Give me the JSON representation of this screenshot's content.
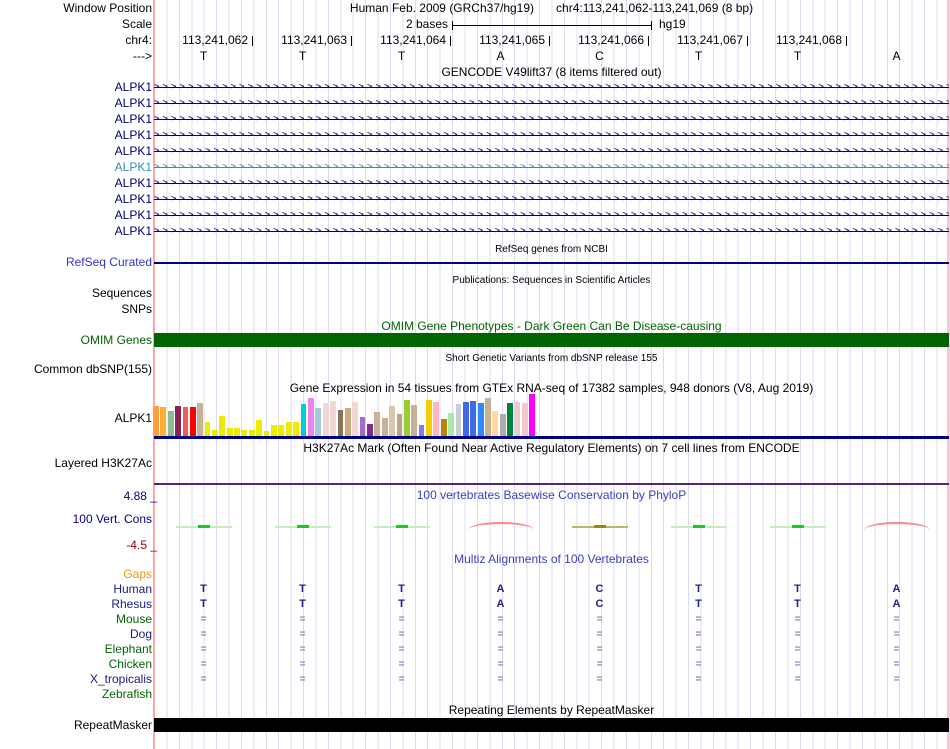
{
  "header": {
    "window_position_label": "Window Position",
    "assembly": "Human Feb. 2009 (GRCh37/hg19)",
    "position": "chr4:113,241,062-113,241,069 (8 bp)",
    "scale_label": "Scale",
    "scale_text": "2 bases",
    "scale_right_text": "hg19",
    "chrom_label": "chr4:",
    "strand_label": "--->",
    "coordinates": [
      "113,241,062",
      "113,241,063",
      "113,241,064",
      "113,241,065",
      "113,241,066",
      "113,241,067",
      "113,241,068"
    ],
    "bases": [
      "T",
      "T",
      "T",
      "A",
      "C",
      "T",
      "T",
      "A"
    ]
  },
  "gencode": {
    "title": "GENCODE V49lift37 (8 items filtered out)",
    "rows": [
      {
        "label": "ALPK1",
        "color": "#000080"
      },
      {
        "label": "ALPK1",
        "color": "#000080"
      },
      {
        "label": "ALPK1",
        "color": "#000080"
      },
      {
        "label": "ALPK1",
        "color": "#000080"
      },
      {
        "label": "ALPK1",
        "color": "#000080"
      },
      {
        "label": "ALPK1",
        "color": "#2F8FB8"
      },
      {
        "label": "ALPK1",
        "color": "#000080"
      },
      {
        "label": "ALPK1",
        "color": "#000080"
      },
      {
        "label": "ALPK1",
        "color": "#000080"
      },
      {
        "label": "ALPK1",
        "color": "#000080"
      }
    ]
  },
  "refseq": {
    "title": "RefSeq genes from NCBI",
    "label": "RefSeq Curated",
    "label_color": "#3535C0",
    "line_color": "#000080"
  },
  "publications": {
    "title": "Publications: Sequences in Scientific Articles",
    "row1": "Sequences",
    "row2": "SNPs"
  },
  "omim": {
    "title": "OMIM Gene Phenotypes - Dark Green Can Be Disease-causing",
    "label": "OMIM Genes",
    "color": "#006400"
  },
  "dbsnp": {
    "title": "Short Genetic Variants from dbSNP release 155",
    "label": "Common dbSNP(155)"
  },
  "gtex": {
    "title": "Gene Expression in 54 tissues from GTEx RNA-seq of 17382 samples, 948 donors (V8, Aug 2019)",
    "label": "ALPK1",
    "baseline_color": "#000080",
    "bars": [
      {
        "color": "#FFA040",
        "h": 30
      },
      {
        "color": "#FFB030",
        "h": 29
      },
      {
        "color": "#8FBC8F",
        "h": 25
      },
      {
        "color": "#8B2257",
        "h": 30
      },
      {
        "color": "#E9605A",
        "h": 29
      },
      {
        "color": "#FF0000",
        "h": 29
      },
      {
        "color": "#C9B195",
        "h": 33
      },
      {
        "color": "#ECEC00",
        "h": 14
      },
      {
        "color": "#ECEC00",
        "h": 6
      },
      {
        "color": "#ECEC00",
        "h": 20
      },
      {
        "color": "#ECEC00",
        "h": 8
      },
      {
        "color": "#ECEC00",
        "h": 8
      },
      {
        "color": "#ECEC00",
        "h": 6
      },
      {
        "color": "#ECEC00",
        "h": 6
      },
      {
        "color": "#ECEC00",
        "h": 16
      },
      {
        "color": "#ECEC00",
        "h": 5
      },
      {
        "color": "#ECEC00",
        "h": 11
      },
      {
        "color": "#ECEC00",
        "h": 11
      },
      {
        "color": "#ECEC00",
        "h": 14
      },
      {
        "color": "#ECEC00",
        "h": 14
      },
      {
        "color": "#00CED1",
        "h": 32
      },
      {
        "color": "#EE82EE",
        "h": 38
      },
      {
        "color": "#A6C8D8",
        "h": 28
      },
      {
        "color": "#EFD7D7",
        "h": 33
      },
      {
        "color": "#EFD7D7",
        "h": 35
      },
      {
        "color": "#8B7355",
        "h": 26
      },
      {
        "color": "#CDAA7D",
        "h": 28
      },
      {
        "color": "#EFD7D7",
        "h": 34
      },
      {
        "color": "#A06CC8",
        "h": 19
      },
      {
        "color": "#7A2E8E",
        "h": 12
      },
      {
        "color": "#C9B195",
        "h": 24
      },
      {
        "color": "#C9B195",
        "h": 18
      },
      {
        "color": "#D9C6AD",
        "h": 30
      },
      {
        "color": "#BFA183",
        "h": 22
      },
      {
        "color": "#9ACD32",
        "h": 36
      },
      {
        "color": "#C9B195",
        "h": 31
      },
      {
        "color": "#8878F0",
        "h": 11
      },
      {
        "color": "#F2CE00",
        "h": 36
      },
      {
        "color": "#FFB6C1",
        "h": 34
      },
      {
        "color": "#B8860B",
        "h": 17
      },
      {
        "color": "#A8E8A8",
        "h": 23
      },
      {
        "color": "#C9CDD6",
        "h": 32
      },
      {
        "color": "#4169E1",
        "h": 34
      },
      {
        "color": "#4169E1",
        "h": 35
      },
      {
        "color": "#2E8BFF",
        "h": 33
      },
      {
        "color": "#C9B195",
        "h": 38
      },
      {
        "color": "#FFD9A0",
        "h": 25
      },
      {
        "color": "#ADADAD",
        "h": 22
      },
      {
        "color": "#00843C",
        "h": 33
      },
      {
        "color": "#EFC9C9",
        "h": 34
      },
      {
        "color": "#EFC9C9",
        "h": 33
      },
      {
        "color": "#FF00FF",
        "h": 42
      }
    ]
  },
  "h3k27ac": {
    "title": "H3K27Ac Mark (Often Found Near Active Regulatory Elements) on 7 cell lines from ENCODE",
    "label": "Layered H3K27Ac",
    "line_color": "#552288"
  },
  "conservation": {
    "title": "100 vertebrates Basewise Conservation by PhyloP",
    "title_color": "#3C3CC8",
    "label": "100 Vert. Cons",
    "max_label": "4.88 _",
    "min_label": "-4.5 _",
    "max_color": "#00008B",
    "min_color": "#8B0000",
    "marks": [
      "green",
      "green",
      "green",
      "red",
      "olive",
      "green",
      "green",
      "red"
    ]
  },
  "multiz": {
    "title": "Multiz Alignments of 100 Vertebrates",
    "title_color": "#3C3CC8",
    "letter_color": "#21218C",
    "eq_color": "#8181BD",
    "rows": [
      {
        "label": "Gaps",
        "color": "#E8940A",
        "cells": [
          "",
          "",
          "",
          "",
          "",
          "",
          "",
          ""
        ]
      },
      {
        "label": "Human",
        "color": "#1A1A7E",
        "cells": [
          "T",
          "T",
          "T",
          "A",
          "C",
          "T",
          "T",
          "A"
        ]
      },
      {
        "label": "Rhesus",
        "color": "#1A1A7E",
        "cells": [
          "T",
          "T",
          "T",
          "A",
          "C",
          "T",
          "T",
          "A"
        ]
      },
      {
        "label": "Mouse",
        "color": "#006400",
        "cells": [
          "=",
          "=",
          "=",
          "=",
          "=",
          "=",
          "=",
          "="
        ]
      },
      {
        "label": "Dog",
        "color": "#1A1A7E",
        "cells": [
          "=",
          "=",
          "=",
          "=",
          "=",
          "=",
          "=",
          "="
        ]
      },
      {
        "label": "Elephant",
        "color": "#006400",
        "cells": [
          "=",
          "=",
          "=",
          "=",
          "=",
          "=",
          "=",
          "="
        ]
      },
      {
        "label": "Chicken",
        "color": "#006400",
        "cells": [
          "=",
          "=",
          "=",
          "=",
          "=",
          "=",
          "=",
          "="
        ]
      },
      {
        "label": "X_tropicalis",
        "color": "#1A1A7E",
        "cells": [
          "=",
          "=",
          "=",
          "=",
          "=",
          "=",
          "=",
          "="
        ]
      },
      {
        "label": "Zebrafish",
        "color": "#006400",
        "cells": [
          "",
          "",
          "",
          "",
          "",
          "",
          "",
          ""
        ]
      }
    ]
  },
  "repeatmasker": {
    "title": "Repeating Elements by RepeatMasker",
    "label": "RepeatMasker",
    "color": "#000000"
  }
}
